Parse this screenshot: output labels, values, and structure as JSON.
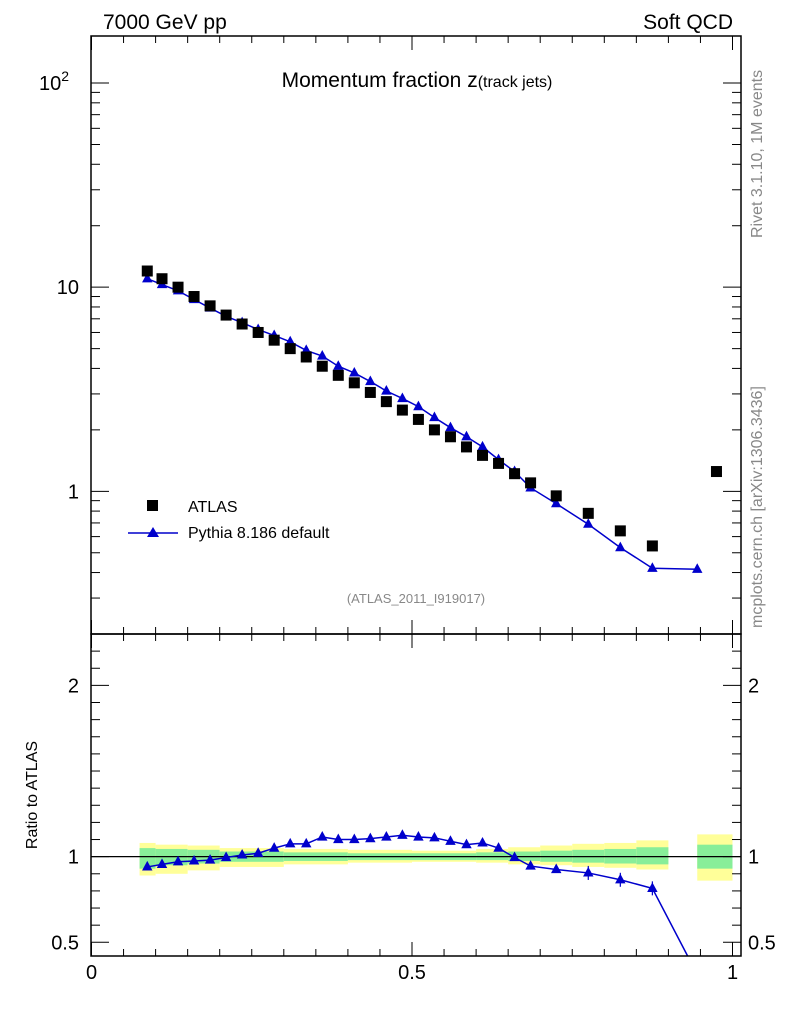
{
  "header": {
    "energy_label": "7000 GeV pp",
    "category_label": "Soft QCD"
  },
  "side_labels": {
    "rivet": "Rivet 3.1.10,  1M events",
    "source": "mcplots.cern.ch [arXiv:1306.3436]"
  },
  "chart_data": {
    "type": "scatter",
    "title_main": "Momentum fraction ",
    "title_var": "z",
    "title_sub": "(track jets)",
    "analysis_label": "(ATLAS_2011_I919017)",
    "x_range": [
      0,
      1
    ],
    "main_y_range_log": [
      0.2,
      170
    ],
    "main_y_ticks": [
      {
        "value": 100,
        "base": "10",
        "exp": "2"
      },
      {
        "value": 10,
        "base": "10",
        "exp": ""
      },
      {
        "value": 1,
        "base": "1",
        "exp": ""
      }
    ],
    "x_ticks": [
      {
        "value": 0,
        "label": "0"
      },
      {
        "value": 0.5,
        "label": "0.5"
      },
      {
        "value": 1,
        "label": "1"
      }
    ],
    "ratio_ylabel": "Ratio to ATLAS",
    "ratio_y_range": [
      0.42,
      2.3
    ],
    "ratio_y_ticks": [
      {
        "value": 2,
        "label": "2"
      },
      {
        "value": 1,
        "label": "1"
      },
      {
        "value": 0.5,
        "label": "0.5"
      }
    ],
    "legend": {
      "data_label": "ATLAS",
      "mc_label": "Pythia 8.186 default"
    },
    "colors": {
      "data": "#000000",
      "mc": "#0000cc",
      "band_inner": "#88ee99",
      "band_outer": "#ffff99"
    },
    "series": [
      {
        "name": "ATLAS",
        "x": [
          0.087,
          0.11,
          0.135,
          0.16,
          0.185,
          0.21,
          0.235,
          0.26,
          0.285,
          0.31,
          0.335,
          0.36,
          0.385,
          0.41,
          0.435,
          0.46,
          0.485,
          0.51,
          0.535,
          0.56,
          0.585,
          0.61,
          0.635,
          0.66,
          0.685,
          0.725,
          0.775,
          0.825,
          0.875,
          0.975
        ],
        "y": [
          12.0,
          11.0,
          10.0,
          9.0,
          8.1,
          7.3,
          6.6,
          6.0,
          5.5,
          5.0,
          4.55,
          4.1,
          3.7,
          3.4,
          3.05,
          2.75,
          2.5,
          2.25,
          2.0,
          1.85,
          1.65,
          1.5,
          1.37,
          1.22,
          1.1,
          0.95,
          0.78,
          0.64,
          0.54,
          1.25
        ]
      },
      {
        "name": "Pythia 8.186 default",
        "x": [
          0.087,
          0.11,
          0.135,
          0.16,
          0.185,
          0.21,
          0.235,
          0.26,
          0.285,
          0.31,
          0.335,
          0.36,
          0.385,
          0.41,
          0.435,
          0.46,
          0.485,
          0.51,
          0.535,
          0.56,
          0.585,
          0.61,
          0.635,
          0.66,
          0.685,
          0.725,
          0.775,
          0.825,
          0.875,
          0.945
        ],
        "y": [
          11.0,
          10.3,
          9.6,
          8.7,
          7.9,
          7.2,
          6.7,
          6.2,
          5.8,
          5.4,
          4.9,
          4.6,
          4.1,
          3.8,
          3.45,
          3.1,
          2.85,
          2.6,
          2.3,
          2.05,
          1.85,
          1.65,
          1.43,
          1.25,
          1.04,
          0.87,
          0.69,
          0.53,
          0.42,
          0.415
        ]
      }
    ],
    "ratio": {
      "x": [
        0.087,
        0.11,
        0.135,
        0.16,
        0.185,
        0.21,
        0.235,
        0.26,
        0.285,
        0.31,
        0.335,
        0.36,
        0.385,
        0.41,
        0.435,
        0.46,
        0.485,
        0.51,
        0.535,
        0.56,
        0.585,
        0.61,
        0.635,
        0.66,
        0.685,
        0.725,
        0.775,
        0.825,
        0.875,
        0.93
      ],
      "y": [
        0.94,
        0.955,
        0.97,
        0.975,
        0.98,
        0.995,
        1.01,
        1.02,
        1.05,
        1.075,
        1.075,
        1.115,
        1.1,
        1.1,
        1.105,
        1.115,
        1.125,
        1.115,
        1.11,
        1.09,
        1.07,
        1.08,
        1.05,
        0.995,
        0.945,
        0.925,
        0.905,
        0.865,
        0.815,
        0.42
      ]
    },
    "uncertainty_bands": [
      {
        "x0": 0.075,
        "x1": 0.1,
        "inner": [
          0.93,
          1.05
        ],
        "outer": [
          0.89,
          1.08
        ]
      },
      {
        "x0": 0.1,
        "x1": 0.15,
        "inner": [
          0.95,
          1.045
        ],
        "outer": [
          0.9,
          1.07
        ]
      },
      {
        "x0": 0.15,
        "x1": 0.2,
        "inner": [
          0.96,
          1.04
        ],
        "outer": [
          0.92,
          1.065
        ]
      },
      {
        "x0": 0.2,
        "x1": 0.3,
        "inner": [
          0.97,
          1.03
        ],
        "outer": [
          0.94,
          1.05
        ]
      },
      {
        "x0": 0.3,
        "x1": 0.4,
        "inner": [
          0.975,
          1.025
        ],
        "outer": [
          0.955,
          1.045
        ]
      },
      {
        "x0": 0.4,
        "x1": 0.5,
        "inner": [
          0.98,
          1.02
        ],
        "outer": [
          0.965,
          1.04
        ]
      },
      {
        "x0": 0.5,
        "x1": 0.6,
        "inner": [
          0.98,
          1.02
        ],
        "outer": [
          0.97,
          1.035
        ]
      },
      {
        "x0": 0.6,
        "x1": 0.65,
        "inner": [
          0.98,
          1.025
        ],
        "outer": [
          0.965,
          1.045
        ]
      },
      {
        "x0": 0.65,
        "x1": 0.7,
        "inner": [
          0.975,
          1.03
        ],
        "outer": [
          0.955,
          1.055
        ]
      },
      {
        "x0": 0.7,
        "x1": 0.75,
        "inner": [
          0.97,
          1.035
        ],
        "outer": [
          0.95,
          1.065
        ]
      },
      {
        "x0": 0.75,
        "x1": 0.8,
        "inner": [
          0.965,
          1.04
        ],
        "outer": [
          0.94,
          1.075
        ]
      },
      {
        "x0": 0.8,
        "x1": 0.85,
        "inner": [
          0.96,
          1.045
        ],
        "outer": [
          0.935,
          1.08
        ]
      },
      {
        "x0": 0.85,
        "x1": 0.9,
        "inner": [
          0.955,
          1.055
        ],
        "outer": [
          0.925,
          1.095
        ]
      },
      {
        "x0": 0.945,
        "x1": 1.0,
        "inner": [
          0.93,
          1.07
        ],
        "outer": [
          0.86,
          1.13
        ]
      }
    ]
  }
}
